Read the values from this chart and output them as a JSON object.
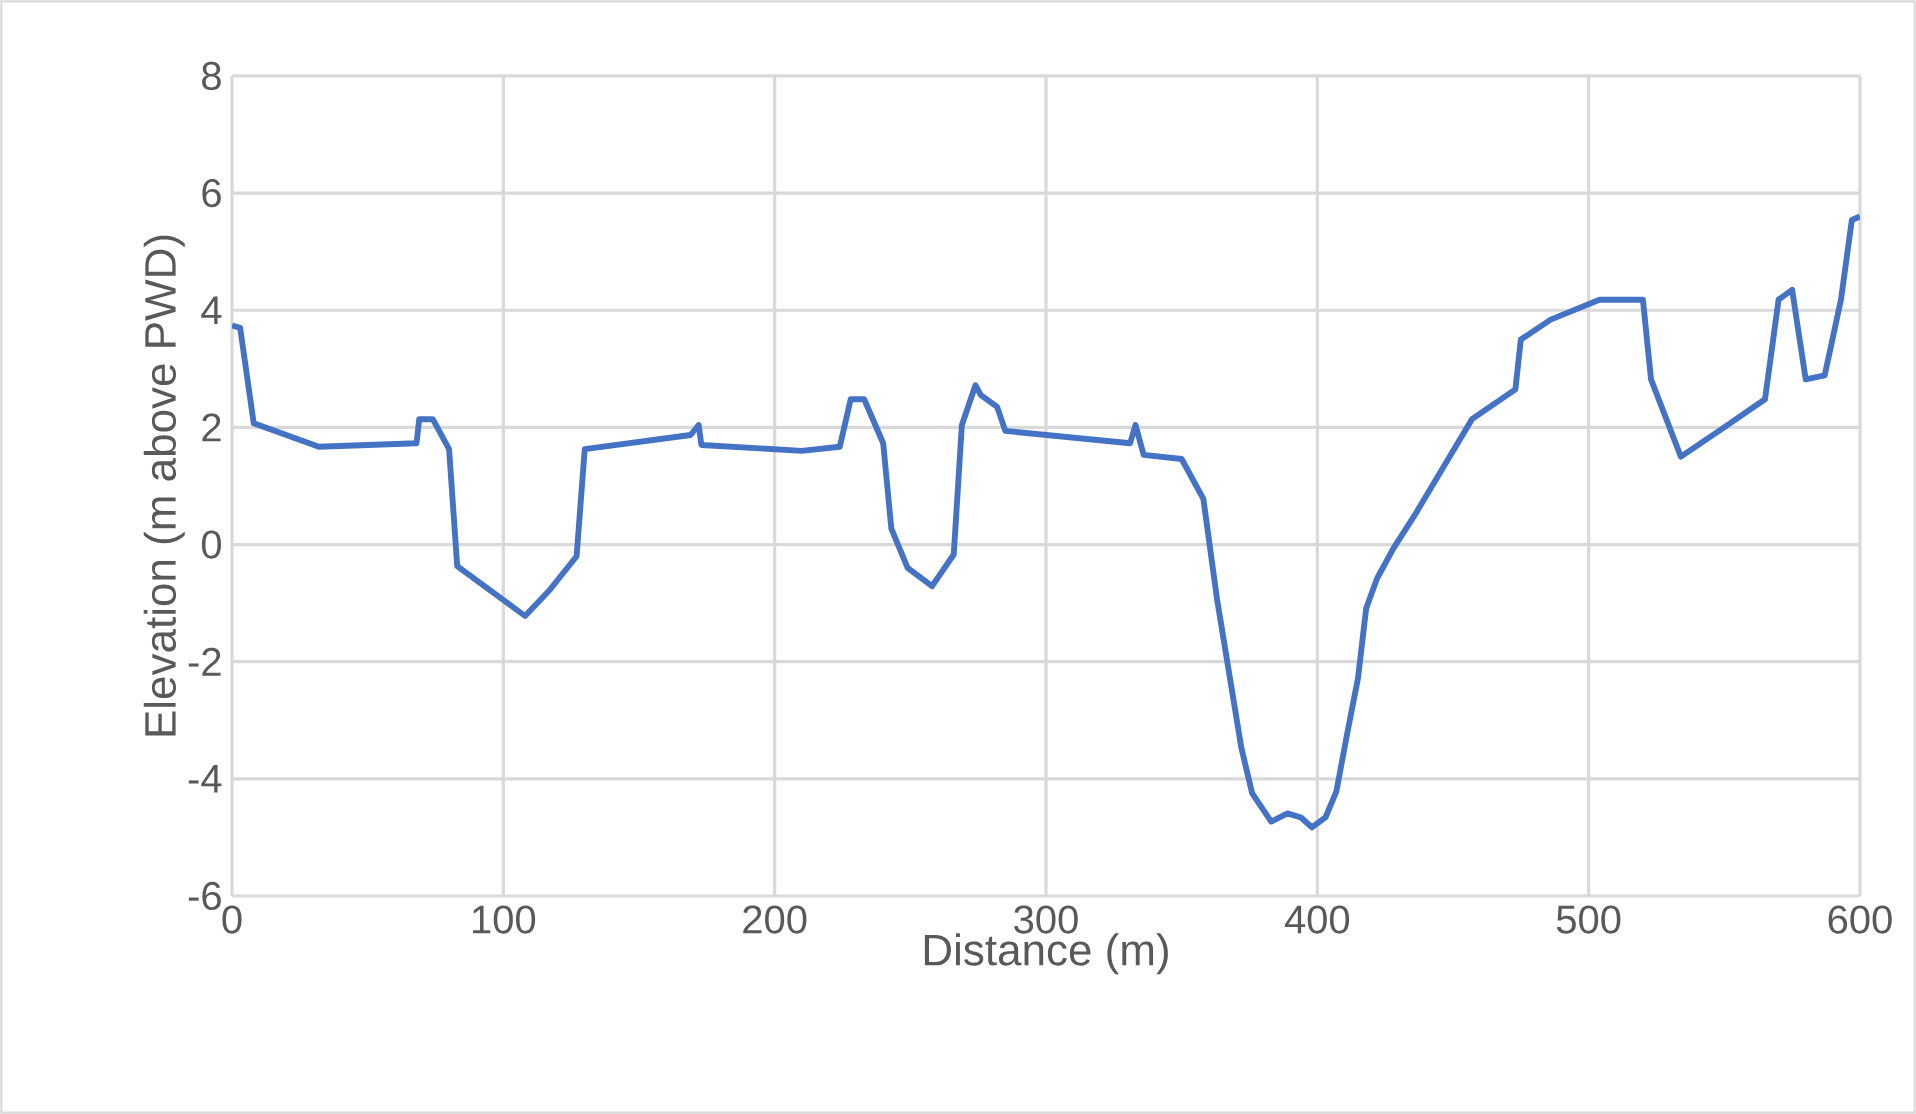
{
  "chart_data": {
    "type": "line",
    "xlabel": "Distance (m)",
    "ylabel": "Elevation (m above PWD)",
    "xlim": [
      0,
      600
    ],
    "xticks": [
      0,
      100,
      200,
      300,
      400,
      500,
      600
    ],
    "ylim": [
      -6,
      8
    ],
    "yticks": [
      -6,
      -4,
      -2,
      0,
      2,
      4,
      6,
      8
    ],
    "grid": true,
    "series": [
      {
        "color": "#4472c4",
        "x": [
          0,
          3,
          8,
          32,
          68,
          69,
          74,
          80,
          83,
          108,
          117,
          127,
          130,
          169,
          172,
          173,
          210,
          224,
          228,
          233,
          240,
          243,
          249,
          258,
          266,
          269,
          274,
          276,
          282,
          285,
          331,
          333,
          336,
          350,
          358,
          363,
          372,
          376,
          383,
          389,
          394,
          398,
          403,
          407,
          411,
          415,
          418,
          422,
          428,
          436,
          457,
          473,
          475,
          486,
          504,
          520,
          523,
          534,
          549,
          565,
          570,
          575,
          580,
          587,
          593,
          597,
          600
        ],
        "values": [
          3.74,
          3.7,
          2.07,
          1.67,
          1.73,
          2.14,
          2.14,
          1.63,
          -0.37,
          -1.22,
          -0.78,
          -0.2,
          1.63,
          1.87,
          2.04,
          1.7,
          1.6,
          1.67,
          2.48,
          2.48,
          1.73,
          0.27,
          -0.4,
          -0.71,
          -0.17,
          2.04,
          2.72,
          2.55,
          2.35,
          1.94,
          1.73,
          2.04,
          1.53,
          1.46,
          0.78,
          -0.92,
          -3.47,
          -4.25,
          -4.73,
          -4.59,
          -4.66,
          -4.83,
          -4.66,
          -4.22,
          -3.23,
          -2.28,
          -1.09,
          -0.58,
          -0.07,
          0.51,
          2.14,
          2.65,
          3.5,
          3.84,
          4.18,
          4.18,
          2.82,
          1.5,
          1.97,
          2.48,
          4.18,
          4.35,
          2.82,
          2.89,
          4.18,
          5.54,
          5.6
        ]
      }
    ]
  }
}
